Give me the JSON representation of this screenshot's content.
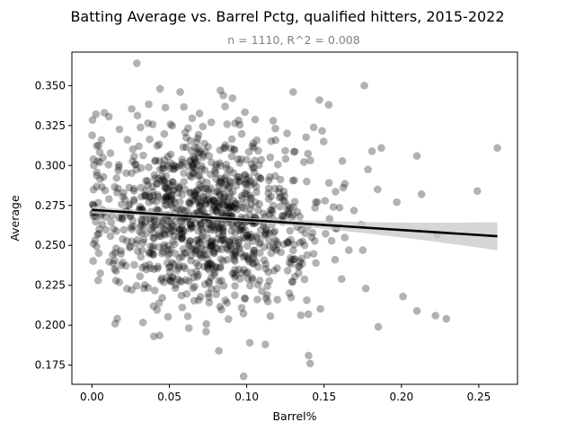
{
  "chart_data": {
    "type": "scatter",
    "title": "Batting Average vs. Barrel Pctg, qualified hitters, 2015-2022",
    "subtitle": "n = 1110, R^2 = 0.008",
    "xlabel": "Barrel%",
    "ylabel": "Average",
    "xlim": [
      -0.013,
      0.275
    ],
    "ylim": [
      0.163,
      0.371
    ],
    "x_ticks": [
      0.0,
      0.05,
      0.1,
      0.15,
      0.2,
      0.25
    ],
    "x_tick_labels": [
      "0.00",
      "0.05",
      "0.10",
      "0.15",
      "0.20",
      "0.25"
    ],
    "y_ticks": [
      0.175,
      0.2,
      0.225,
      0.25,
      0.275,
      0.3,
      0.325,
      0.35
    ],
    "y_tick_labels": [
      "0.175",
      "0.200",
      "0.225",
      "0.250",
      "0.275",
      "0.300",
      "0.325",
      "0.350"
    ],
    "grid": false,
    "point_color": "#000000",
    "point_opacity": 0.3,
    "regression": {
      "x_start": 0.0,
      "y_start": 0.2722,
      "x_end": 0.262,
      "y_end": 0.2557,
      "ci_at_end": 0.0088,
      "line_color": "#000000",
      "ci_color": "#c8c8c8"
    },
    "highlighted_points": [
      {
        "x": 0.029,
        "y": 0.364
      },
      {
        "x": 0.176,
        "y": 0.35
      },
      {
        "x": 0.262,
        "y": 0.311
      },
      {
        "x": 0.249,
        "y": 0.284
      },
      {
        "x": 0.223,
        "y": 0.257
      },
      {
        "x": 0.213,
        "y": 0.282
      },
      {
        "x": 0.21,
        "y": 0.306
      },
      {
        "x": 0.197,
        "y": 0.277
      },
      {
        "x": 0.187,
        "y": 0.311
      },
      {
        "x": 0.229,
        "y": 0.204
      },
      {
        "x": 0.222,
        "y": 0.206
      },
      {
        "x": 0.21,
        "y": 0.209
      },
      {
        "x": 0.201,
        "y": 0.218
      },
      {
        "x": 0.185,
        "y": 0.199
      },
      {
        "x": 0.177,
        "y": 0.223
      },
      {
        "x": 0.098,
        "y": 0.168
      },
      {
        "x": 0.141,
        "y": 0.176
      },
      {
        "x": 0.14,
        "y": 0.181
      },
      {
        "x": 0.082,
        "y": 0.184
      },
      {
        "x": 0.102,
        "y": 0.189
      },
      {
        "x": 0.112,
        "y": 0.188
      },
      {
        "x": 0.015,
        "y": 0.201
      },
      {
        "x": 0.044,
        "y": 0.348
      },
      {
        "x": 0.057,
        "y": 0.346
      },
      {
        "x": 0.083,
        "y": 0.347
      },
      {
        "x": 0.13,
        "y": 0.346
      },
      {
        "x": 0.147,
        "y": 0.341
      },
      {
        "x": 0.153,
        "y": 0.338
      },
      {
        "x": 0.008,
        "y": 0.333
      },
      {
        "x": 0.181,
        "y": 0.309
      },
      {
        "x": 0.174,
        "y": 0.263
      },
      {
        "x": 0.166,
        "y": 0.247
      },
      {
        "x": 0.175,
        "y": 0.247
      }
    ],
    "cluster": {
      "count": 1077,
      "seed": 20150622,
      "x_mean": 0.072,
      "x_sd": 0.038,
      "y_mean": 0.269,
      "y_sd": 0.027,
      "y_slope": -0.063
    }
  }
}
